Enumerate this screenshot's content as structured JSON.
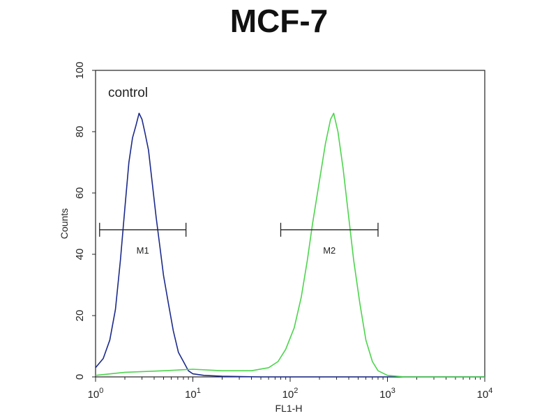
{
  "chart_data": {
    "type": "histogram",
    "title": "MCF-7",
    "xlabel": "FL1-H",
    "ylabel": "Counts",
    "xscale": "log",
    "xlim": [
      1,
      10000
    ],
    "ylim": [
      0,
      100
    ],
    "x_ticks": [
      {
        "value": 1,
        "base": "10",
        "exp": "0"
      },
      {
        "value": 10,
        "base": "10",
        "exp": "1"
      },
      {
        "value": 100,
        "base": "10",
        "exp": "2"
      },
      {
        "value": 1000,
        "base": "10",
        "exp": "3"
      },
      {
        "value": 10000,
        "base": "10",
        "exp": "4"
      }
    ],
    "y_ticks": [
      "0",
      "20",
      "40",
      "60",
      "80",
      "100"
    ],
    "annotation": "control",
    "series": [
      {
        "color": "#1b2a8a",
        "points": [
          [
            1.0,
            3
          ],
          [
            1.2,
            6
          ],
          [
            1.4,
            12
          ],
          [
            1.6,
            22
          ],
          [
            1.8,
            38
          ],
          [
            2.0,
            55
          ],
          [
            2.2,
            70
          ],
          [
            2.4,
            78
          ],
          [
            2.6,
            82
          ],
          [
            2.8,
            86
          ],
          [
            3.0,
            84
          ],
          [
            3.2,
            80
          ],
          [
            3.5,
            74
          ],
          [
            3.8,
            64
          ],
          [
            4.2,
            52
          ],
          [
            4.6,
            42
          ],
          [
            5.0,
            33
          ],
          [
            5.6,
            24
          ],
          [
            6.3,
            15
          ],
          [
            7.1,
            8
          ],
          [
            8.0,
            5
          ],
          [
            9.0,
            2
          ],
          [
            10,
            1
          ],
          [
            13,
            0.5
          ],
          [
            20,
            0.2
          ],
          [
            50,
            0
          ],
          [
            10000,
            0
          ]
        ]
      },
      {
        "color": "#4cd44c",
        "points": [
          [
            1.0,
            0.5
          ],
          [
            2.0,
            1.5
          ],
          [
            5.0,
            2
          ],
          [
            10,
            2.5
          ],
          [
            20,
            2
          ],
          [
            40,
            2
          ],
          [
            60,
            3
          ],
          [
            75,
            5
          ],
          [
            90,
            9
          ],
          [
            110,
            16
          ],
          [
            130,
            26
          ],
          [
            150,
            38
          ],
          [
            170,
            50
          ],
          [
            200,
            64
          ],
          [
            230,
            76
          ],
          [
            260,
            84
          ],
          [
            280,
            86
          ],
          [
            310,
            80
          ],
          [
            350,
            68
          ],
          [
            400,
            52
          ],
          [
            450,
            38
          ],
          [
            520,
            24
          ],
          [
            600,
            12
          ],
          [
            700,
            5
          ],
          [
            800,
            2
          ],
          [
            1000,
            0.5
          ],
          [
            1500,
            0
          ],
          [
            10000,
            0
          ]
        ]
      }
    ],
    "markers": [
      {
        "label": "M1",
        "x_start": 1.1,
        "x_end": 8.5,
        "y": 48
      },
      {
        "label": "M2",
        "x_start": 80,
        "x_end": 800,
        "y": 48
      }
    ],
    "grid": false
  }
}
